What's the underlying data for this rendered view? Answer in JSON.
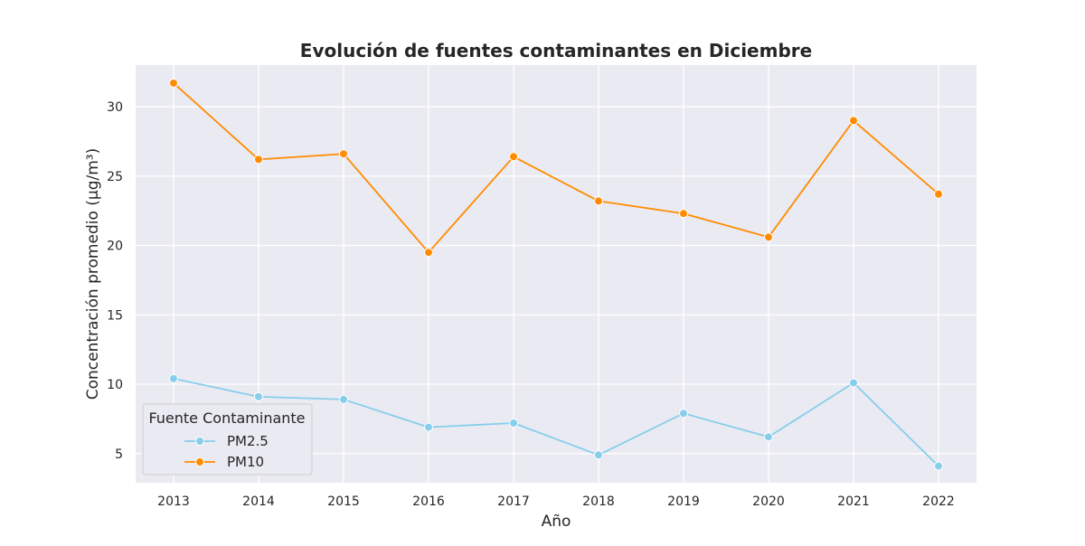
{
  "chart_data": {
    "type": "line",
    "title": "Evolución de fuentes contaminantes en Diciembre",
    "xlabel": "Año",
    "ylabel": "Concentración promedio (µg/m³)",
    "x": [
      "2013",
      "2014",
      "2015",
      "2016",
      "2017",
      "2018",
      "2019",
      "2020",
      "2021",
      "2022"
    ],
    "ylim": [
      2.9,
      33.0
    ],
    "yticks": [
      5,
      10,
      15,
      20,
      25,
      30
    ],
    "grid": true,
    "legend": {
      "title": "Fuente Contaminante",
      "placement": "lower-left"
    },
    "series": [
      {
        "name": "PM2.5",
        "color": "#87ceeb",
        "values": [
          10.4,
          9.1,
          8.9,
          6.9,
          7.2,
          4.9,
          7.9,
          6.2,
          10.1,
          4.1
        ]
      },
      {
        "name": "PM10",
        "color": "#ff8c00",
        "values": [
          31.7,
          26.2,
          26.6,
          19.5,
          26.4,
          23.2,
          22.3,
          20.6,
          29.0,
          23.7
        ]
      }
    ]
  }
}
